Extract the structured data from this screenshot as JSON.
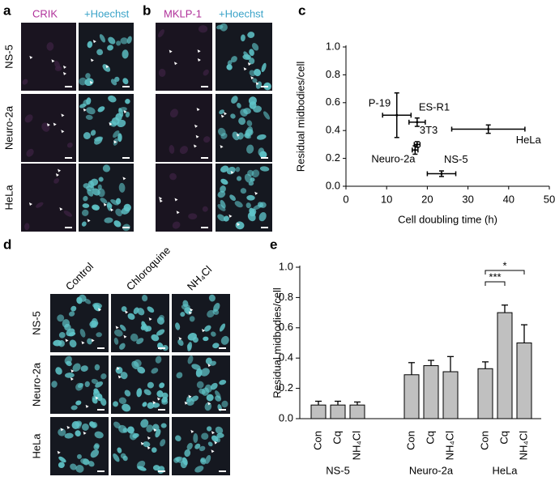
{
  "figure": {
    "panel_letters": [
      "a",
      "b",
      "c",
      "d",
      "e"
    ],
    "panel_a": {
      "stain": "CRIK",
      "counterstain": "+Hoechst",
      "rows": [
        "NS-5",
        "Neuro-2a",
        "HeLa"
      ]
    },
    "panel_b": {
      "stain": "MKLP-1",
      "counterstain": "+Hoechst"
    },
    "panel_d": {
      "columns": [
        "Control",
        "Chloroquine",
        "NH₄Cl"
      ],
      "rows": [
        "NS-5",
        "Neuro-2a",
        "HeLa"
      ]
    }
  },
  "chart_data": [
    {
      "type": "scatter",
      "x_label": "Cell doubling time (h)",
      "y_label": "Residual midbodies/cell",
      "point_labels": [
        "P-19",
        "ES-R1",
        "3T3",
        "Neuro-2a",
        "NS-5",
        "HeLa"
      ],
      "x": [
        12.5,
        17.5,
        17.5,
        17,
        23.5,
        35
      ],
      "y": [
        0.51,
        0.46,
        0.3,
        0.26,
        0.09,
        0.41
      ],
      "xerr": [
        3.5,
        2,
        0.7,
        0.7,
        3.5,
        9
      ],
      "yerr": [
        0.16,
        0.03,
        0.02,
        0.03,
        0.02,
        0.03
      ],
      "xlim": [
        0,
        50
      ],
      "ylim": [
        0,
        1
      ],
      "xticks": [
        0,
        10,
        20,
        30,
        40,
        50
      ],
      "yticks": [
        {
          "value": 0,
          "label": "0.0"
        },
        0.2,
        0.4,
        0.6,
        0.8,
        {
          "value": 1,
          "label": "1.0"
        }
      ],
      "color": "#000000"
    },
    {
      "type": "bar",
      "y_label": "Residual midbodies/cell",
      "groups": [
        "NS-5",
        "Neuro-2a",
        "HeLa"
      ],
      "categories": [
        "Con",
        "Cq",
        "NH₄Cl",
        "Con",
        "Cq",
        "NH₄Cl",
        "Con",
        "Cq",
        "NH₄Cl"
      ],
      "values": [
        0.09,
        0.09,
        0.09,
        0.29,
        0.35,
        0.31,
        0.33,
        0.7,
        0.5
      ],
      "errors": [
        0.025,
        0.025,
        0.02,
        0.08,
        0.035,
        0.1,
        0.045,
        0.05,
        0.12
      ],
      "color": "#c0c0c0",
      "ylim": [
        0,
        1
      ],
      "yticks": [
        {
          "value": 0,
          "label": "0.0"
        },
        0.2,
        0.4,
        0.6,
        0.8,
        {
          "value": 1,
          "label": "1.0"
        }
      ],
      "annotations": [
        "***",
        "*"
      ]
    }
  ]
}
